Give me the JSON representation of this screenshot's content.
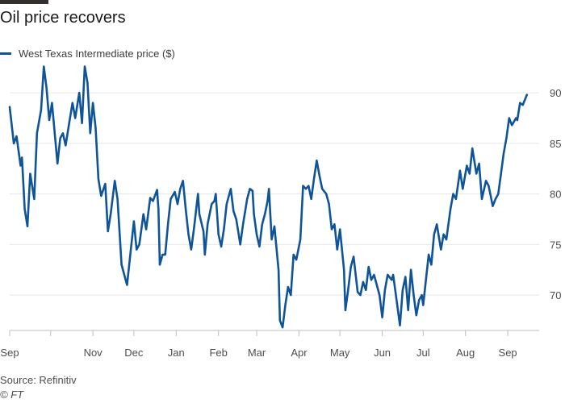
{
  "title": "Oil price recovers",
  "source": "Source: Refinitiv",
  "copyright": "© FT",
  "colors": {
    "line": "#0f5499",
    "grid": "#e6e6e6",
    "axis": "#bdbdbd",
    "text": "#4d4d4d"
  },
  "chart_data": {
    "type": "line",
    "title": "Oil price recovers",
    "legend_position": "top-left",
    "grid": true,
    "y_axis_side": "right",
    "ylim": [
      66.5,
      92.8
    ],
    "yticks": [
      70,
      75,
      80,
      85,
      90
    ],
    "x_axis": {
      "start": "2020-09-01",
      "end": "2021-09-24",
      "tick_dates": [
        "2020-09-01",
        "2020-10-01",
        "2020-11-01",
        "2020-12-01",
        "2021-01-01",
        "2021-02-01",
        "2021-03-01",
        "2021-04-01",
        "2021-05-01",
        "2021-06-01",
        "2021-07-01",
        "2021-08-01",
        "2021-09-01"
      ],
      "labels": [
        {
          "date": "2020-09-01",
          "text": "Sep"
        },
        {
          "date": "2020-11-01",
          "text": "Nov"
        },
        {
          "date": "2020-12-01",
          "text": "Dec"
        },
        {
          "date": "2021-01-01",
          "text": "Jan"
        },
        {
          "date": "2021-02-01",
          "text": "Feb"
        },
        {
          "date": "2021-03-01",
          "text": "Mar"
        },
        {
          "date": "2021-04-01",
          "text": "Apr"
        },
        {
          "date": "2021-05-01",
          "text": "May"
        },
        {
          "date": "2021-06-01",
          "text": "Jun"
        },
        {
          "date": "2021-07-01",
          "text": "Jul"
        },
        {
          "date": "2021-08-01",
          "text": "Aug"
        },
        {
          "date": "2021-09-01",
          "text": "Sep"
        }
      ]
    },
    "series": [
      {
        "name": "West Texas Intermediate price ($)",
        "points": [
          [
            "2020-09-01",
            88.6
          ],
          [
            "2020-09-04",
            85.0
          ],
          [
            "2020-09-06",
            85.7
          ],
          [
            "2020-09-09",
            82.8
          ],
          [
            "2020-09-10",
            83.6
          ],
          [
            "2020-09-12",
            78.5
          ],
          [
            "2020-09-14",
            76.8
          ],
          [
            "2020-09-16",
            82.0
          ],
          [
            "2020-09-19",
            79.5
          ],
          [
            "2020-09-21",
            86.0
          ],
          [
            "2020-09-24",
            88.3
          ],
          [
            "2020-09-26",
            92.6
          ],
          [
            "2020-09-28",
            90.5
          ],
          [
            "2020-09-30",
            87.3
          ],
          [
            "2020-10-02",
            89.0
          ],
          [
            "2020-10-04",
            86.0
          ],
          [
            "2020-10-06",
            83.0
          ],
          [
            "2020-10-08",
            85.5
          ],
          [
            "2020-10-10",
            86.0
          ],
          [
            "2020-10-12",
            84.8
          ],
          [
            "2020-10-14",
            86.5
          ],
          [
            "2020-10-17",
            89.0
          ],
          [
            "2020-10-19",
            87.5
          ],
          [
            "2020-10-22",
            90.0
          ],
          [
            "2020-10-24",
            87.0
          ],
          [
            "2020-10-26",
            92.6
          ],
          [
            "2020-10-28",
            91.0
          ],
          [
            "2020-10-30",
            86.0
          ],
          [
            "2020-11-01",
            89.0
          ],
          [
            "2020-11-03",
            86.5
          ],
          [
            "2020-11-05",
            81.5
          ],
          [
            "2020-11-07",
            79.8
          ],
          [
            "2020-11-10",
            81.0
          ],
          [
            "2020-11-12",
            76.3
          ],
          [
            "2020-11-14",
            78.0
          ],
          [
            "2020-11-17",
            81.3
          ],
          [
            "2020-11-19",
            79.5
          ],
          [
            "2020-11-22",
            73.0
          ],
          [
            "2020-11-24",
            72.0
          ],
          [
            "2020-11-26",
            71.0
          ],
          [
            "2020-11-29",
            74.8
          ],
          [
            "2020-12-01",
            77.3
          ],
          [
            "2020-12-03",
            74.5
          ],
          [
            "2020-12-05",
            75.0
          ],
          [
            "2020-12-08",
            78.0
          ],
          [
            "2020-12-10",
            76.5
          ],
          [
            "2020-12-13",
            79.6
          ],
          [
            "2020-12-15",
            79.3
          ],
          [
            "2020-12-18",
            80.4
          ],
          [
            "2020-12-19",
            78.5
          ],
          [
            "2020-12-20",
            73.0
          ],
          [
            "2020-12-22",
            74.0
          ],
          [
            "2020-12-24",
            74.0
          ],
          [
            "2020-12-26",
            77.0
          ],
          [
            "2020-12-28",
            79.5
          ],
          [
            "2020-12-31",
            80.2
          ],
          [
            "2021-01-02",
            79.0
          ],
          [
            "2021-01-04",
            80.5
          ],
          [
            "2021-01-06",
            81.3
          ],
          [
            "2021-01-08",
            78.5
          ],
          [
            "2021-01-10",
            76.0
          ],
          [
            "2021-01-12",
            74.5
          ],
          [
            "2021-01-14",
            76.5
          ],
          [
            "2021-01-17",
            80.0
          ],
          [
            "2021-01-18",
            78.0
          ],
          [
            "2021-01-21",
            76.3
          ],
          [
            "2021-01-22",
            74.0
          ],
          [
            "2021-01-24",
            77.0
          ],
          [
            "2021-01-27",
            79.0
          ],
          [
            "2021-01-29",
            79.3
          ],
          [
            "2021-01-30",
            80.0
          ],
          [
            "2021-02-01",
            76.0
          ],
          [
            "2021-02-03",
            74.8
          ],
          [
            "2021-02-05",
            76.5
          ],
          [
            "2021-02-07",
            79.0
          ],
          [
            "2021-02-10",
            80.5
          ],
          [
            "2021-02-12",
            78.3
          ],
          [
            "2021-02-14",
            77.5
          ],
          [
            "2021-02-17",
            75.0
          ],
          [
            "2021-02-19",
            77.0
          ],
          [
            "2021-02-22",
            79.5
          ],
          [
            "2021-02-24",
            80.5
          ],
          [
            "2021-02-26",
            80.3
          ],
          [
            "2021-02-27",
            78.0
          ],
          [
            "2021-03-01",
            76.0
          ],
          [
            "2021-03-03",
            74.8
          ],
          [
            "2021-03-05",
            77.0
          ],
          [
            "2021-03-07",
            78.0
          ],
          [
            "2021-03-09",
            79.3
          ],
          [
            "2021-03-10",
            80.5
          ],
          [
            "2021-03-12",
            75.5
          ],
          [
            "2021-03-14",
            76.8
          ],
          [
            "2021-03-17",
            72.5
          ],
          [
            "2021-03-18",
            67.5
          ],
          [
            "2021-03-20",
            66.8
          ],
          [
            "2021-03-22",
            69.0
          ],
          [
            "2021-03-24",
            70.8
          ],
          [
            "2021-03-26",
            70.0
          ],
          [
            "2021-03-28",
            74.0
          ],
          [
            "2021-03-30",
            73.5
          ],
          [
            "2021-04-02",
            75.5
          ],
          [
            "2021-04-04",
            80.8
          ],
          [
            "2021-04-06",
            80.5
          ],
          [
            "2021-04-08",
            80.8
          ],
          [
            "2021-04-10",
            79.5
          ],
          [
            "2021-04-12",
            81.5
          ],
          [
            "2021-04-14",
            83.3
          ],
          [
            "2021-04-16",
            81.8
          ],
          [
            "2021-04-18",
            80.5
          ],
          [
            "2021-04-21",
            80.0
          ],
          [
            "2021-04-23",
            79.0
          ],
          [
            "2021-04-25",
            76.5
          ],
          [
            "2021-04-27",
            77.0
          ],
          [
            "2021-04-29",
            74.5
          ],
          [
            "2021-05-01",
            76.5
          ],
          [
            "2021-05-04",
            72.5
          ],
          [
            "2021-05-05",
            68.5
          ],
          [
            "2021-05-07",
            70.5
          ],
          [
            "2021-05-09",
            72.8
          ],
          [
            "2021-05-11",
            73.8
          ],
          [
            "2021-05-14",
            70.3
          ],
          [
            "2021-05-16",
            70.0
          ],
          [
            "2021-05-18",
            71.3
          ],
          [
            "2021-05-20",
            70.5
          ],
          [
            "2021-05-22",
            72.8
          ],
          [
            "2021-05-24",
            71.5
          ],
          [
            "2021-05-26",
            72.0
          ],
          [
            "2021-05-28",
            71.0
          ],
          [
            "2021-05-30",
            70.0
          ],
          [
            "2021-06-01",
            67.8
          ],
          [
            "2021-06-03",
            70.5
          ],
          [
            "2021-06-05",
            72.0
          ],
          [
            "2021-06-08",
            71.5
          ],
          [
            "2021-06-09",
            72.0
          ],
          [
            "2021-06-11",
            70.0
          ],
          [
            "2021-06-14",
            67.0
          ],
          [
            "2021-06-16",
            70.5
          ],
          [
            "2021-06-18",
            71.8
          ],
          [
            "2021-06-20",
            68.5
          ],
          [
            "2021-06-22",
            72.5
          ],
          [
            "2021-06-24",
            70.0
          ],
          [
            "2021-06-26",
            68.0
          ],
          [
            "2021-06-28",
            69.5
          ],
          [
            "2021-06-30",
            70.0
          ],
          [
            "2021-07-01",
            69.0
          ],
          [
            "2021-07-03",
            71.5
          ],
          [
            "2021-07-05",
            74.0
          ],
          [
            "2021-07-07",
            73.0
          ],
          [
            "2021-07-09",
            76.0
          ],
          [
            "2021-07-11",
            77.0
          ],
          [
            "2021-07-14",
            74.5
          ],
          [
            "2021-07-16",
            76.0
          ],
          [
            "2021-07-18",
            75.5
          ],
          [
            "2021-07-21",
            78.5
          ],
          [
            "2021-07-23",
            80.0
          ],
          [
            "2021-07-25",
            79.5
          ],
          [
            "2021-07-28",
            82.3
          ],
          [
            "2021-07-30",
            80.5
          ],
          [
            "2021-08-02",
            82.8
          ],
          [
            "2021-08-04",
            82.0
          ],
          [
            "2021-08-06",
            84.5
          ],
          [
            "2021-08-09",
            82.0
          ],
          [
            "2021-08-11",
            83.0
          ],
          [
            "2021-08-13",
            79.5
          ],
          [
            "2021-08-16",
            81.3
          ],
          [
            "2021-08-18",
            80.8
          ],
          [
            "2021-08-21",
            78.8
          ],
          [
            "2021-08-23",
            79.5
          ],
          [
            "2021-08-25",
            80.0
          ],
          [
            "2021-08-27",
            82.0
          ],
          [
            "2021-08-29",
            84.0
          ],
          [
            "2021-08-31",
            85.5
          ],
          [
            "2021-09-02",
            87.5
          ],
          [
            "2021-09-04",
            86.8
          ],
          [
            "2021-09-07",
            87.5
          ],
          [
            "2021-09-08",
            87.3
          ],
          [
            "2021-09-10",
            89.0
          ],
          [
            "2021-09-12",
            88.8
          ],
          [
            "2021-09-15",
            89.8
          ]
        ]
      }
    ]
  }
}
